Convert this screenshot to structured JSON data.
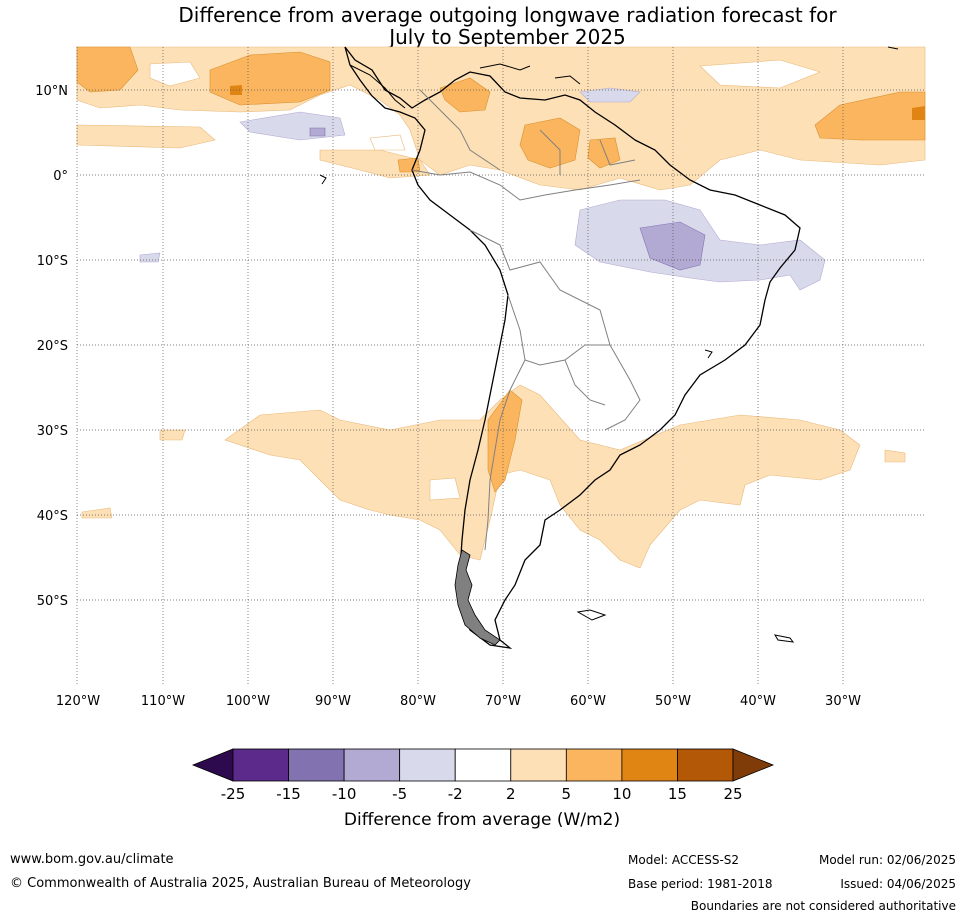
{
  "title": {
    "line1": "Difference from average outgoing longwave radiation forecast for",
    "line2": "July to September 2025"
  },
  "map": {
    "lat_labels": [
      "10°N",
      "0°",
      "10°S",
      "20°S",
      "30°S",
      "40°S",
      "50°S"
    ],
    "lon_labels": [
      "120°W",
      "110°W",
      "100°W",
      "90°W",
      "80°W",
      "70°W",
      "60°W",
      "50°W",
      "40°W",
      "30°W"
    ]
  },
  "colorbar": {
    "ticks": [
      "-25",
      "-15",
      "-10",
      "-5",
      "-2",
      "2",
      "5",
      "10",
      "15",
      "25"
    ],
    "colors": [
      "#2d0a4e",
      "#5b2a8a",
      "#8273b0",
      "#b2aad2",
      "#d8d9ea",
      "#ffffff",
      "#fde0b6",
      "#fbb55e",
      "#e08514",
      "#b35807",
      "#7f3b08"
    ],
    "label": "Difference from average (W/m2)"
  },
  "footer": {
    "url": "www.bom.gov.au/climate",
    "copyright": "© Commonwealth of Australia 2025, Australian Bureau of Meteorology",
    "model": "Model: ACCESS-S2",
    "base_period": "Base period: 1981-2018",
    "model_run": "Model run: 02/06/2025",
    "issued": "Issued: 04/06/2025",
    "disclaimer": "Boundaries are not considered authoritative"
  }
}
